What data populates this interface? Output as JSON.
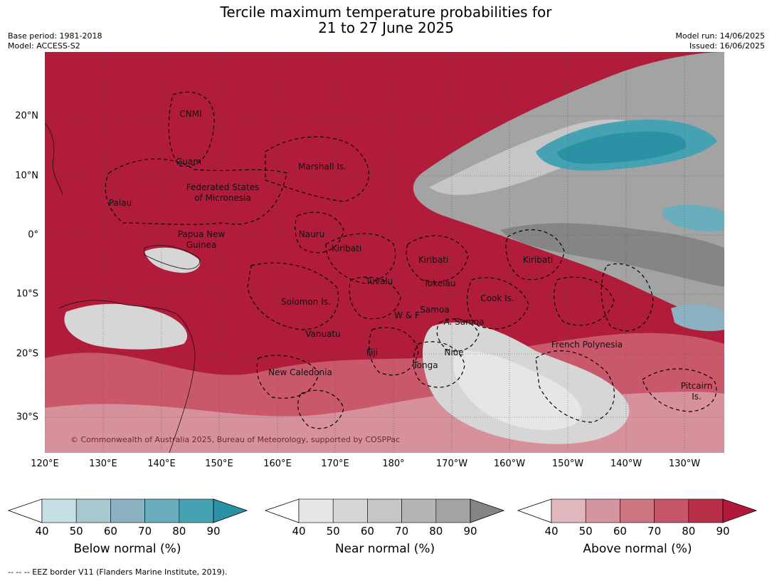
{
  "title": {
    "line1": "Tercile maximum temperature probabilities for",
    "line2": "21 to 27 June 2025"
  },
  "meta": {
    "base_period": "Base period: 1981-2018",
    "model": "Model: ACCESS-S2",
    "model_run": "Model run: 14/06/2025",
    "issued": "Issued: 16/06/2025"
  },
  "map": {
    "lat_labels": [
      "20°N",
      "10°N",
      "0°",
      "10°S",
      "20°S",
      "30°S"
    ],
    "lon_labels": [
      "120°E",
      "130°E",
      "140°E",
      "150°E",
      "160°E",
      "170°E",
      "180°",
      "170°W",
      "160°W",
      "150°W",
      "140°W",
      "130°W"
    ],
    "places": [
      {
        "name": "CNMI"
      },
      {
        "name": "Guam"
      },
      {
        "name": "Marshall Is."
      },
      {
        "name": "Federated States"
      },
      {
        "name": "of Micronesia"
      },
      {
        "name": "Palau"
      },
      {
        "name": "Papua New"
      },
      {
        "name": "Guinea"
      },
      {
        "name": "Nauru"
      },
      {
        "name": "Kiribati"
      },
      {
        "name": "Kiribati"
      },
      {
        "name": "Kiribati"
      },
      {
        "name": "Tuvalu"
      },
      {
        "name": "Tokelau"
      },
      {
        "name": "Solomon Is."
      },
      {
        "name": "Samoa"
      },
      {
        "name": "W & F"
      },
      {
        "name": "A. Samoa"
      },
      {
        "name": "Cook Is."
      },
      {
        "name": "Vanuatu"
      },
      {
        "name": "Fiji"
      },
      {
        "name": "Niue"
      },
      {
        "name": "Tonga"
      },
      {
        "name": "French Polynesia"
      },
      {
        "name": "New Caledonia"
      },
      {
        "name": "Pitcairn"
      },
      {
        "name": "Is."
      }
    ],
    "copyright": "© Commonwealth of Australia 2025, Bureau of Meteorology, supported by COSPPac"
  },
  "colorbars": [
    {
      "label": "Below normal (%)",
      "ticks": [
        "40",
        "50",
        "60",
        "70",
        "80",
        "90"
      ],
      "colors": [
        "#c6dfe5",
        "#a8c8cf",
        "#8bb2c0",
        "#6aaebd",
        "#45a2b3",
        "#2b91a4"
      ]
    },
    {
      "label": "Near normal (%)",
      "ticks": [
        "40",
        "50",
        "60",
        "70",
        "80",
        "90"
      ],
      "colors": [
        "#e6e6e6",
        "#d6d6d6",
        "#c6c6c6",
        "#b5b5b5",
        "#a3a3a3",
        "#858585"
      ]
    },
    {
      "label": "Above normal (%)",
      "ticks": [
        "40",
        "50",
        "60",
        "70",
        "80",
        "90"
      ],
      "colors": [
        "#e1b7bd",
        "#d5959f",
        "#cd7580",
        "#c5566a",
        "#ba2f48",
        "#b0193a"
      ]
    }
  ],
  "footer": "--  --  -- EEZ border V11 (Flanders Marine Institute, 2019)."
}
